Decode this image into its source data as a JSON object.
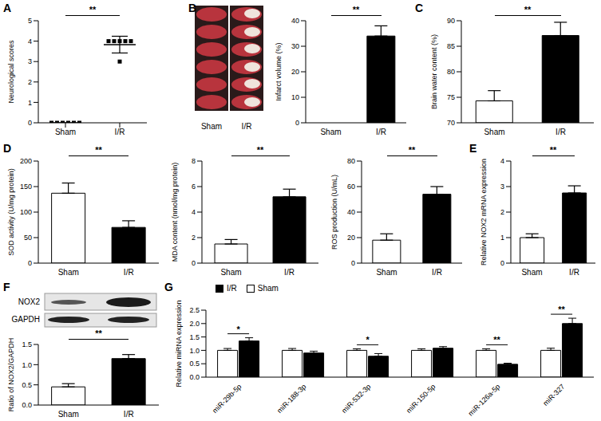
{
  "chart_data": [
    {
      "panel": "A",
      "type": "scatter",
      "y_label": "Neurological scores",
      "categories": [
        "Sham",
        "I/R"
      ],
      "values": [
        [
          0,
          0,
          0,
          0,
          0,
          0
        ],
        [
          4,
          4,
          4,
          4,
          4,
          3
        ]
      ],
      "means": [
        0,
        3.83
      ],
      "errors": [
        0,
        0.41
      ],
      "ylim": [
        0,
        5
      ],
      "yticks": [
        0,
        1,
        2,
        3,
        4,
        5
      ],
      "annotation": "**"
    },
    {
      "panel": "B",
      "type": "bar",
      "image_labels": [
        "Sham",
        "I/R"
      ],
      "y_label": "Infarct volume (%)",
      "categories": [
        "Sham",
        "I/R"
      ],
      "values": [
        0,
        34
      ],
      "errors": [
        0,
        4
      ],
      "colors": [
        "#ffffff",
        "#000000"
      ],
      "ylim": [
        0,
        40
      ],
      "yticks": [
        0,
        10,
        20,
        30,
        40
      ],
      "annotation": "**"
    },
    {
      "panel": "C",
      "type": "bar",
      "y_label": "Brain water content (%)",
      "categories": [
        "Sham",
        "I/R"
      ],
      "values": [
        74.3,
        87.1
      ],
      "errors": [
        2,
        2.6
      ],
      "colors": [
        "#ffffff",
        "#000000"
      ],
      "ylim": [
        70,
        90
      ],
      "yticks": [
        70,
        75,
        80,
        85,
        90
      ],
      "annotation": "**"
    },
    {
      "panel": "D",
      "type": "bar",
      "y_label": "SOD activity (U/mg protein)",
      "categories": [
        "Sham",
        "I/R"
      ],
      "values": [
        137,
        70
      ],
      "errors": [
        20,
        13
      ],
      "colors": [
        "#ffffff",
        "#000000"
      ],
      "ylim": [
        0,
        200
      ],
      "yticks": [
        0,
        50,
        100,
        150,
        200
      ],
      "annotation": "**"
    },
    {
      "type": "bar",
      "y_label": "MDA content (nmol/mg protein)",
      "categories": [
        "Sham",
        "I/R"
      ],
      "values": [
        1.5,
        5.2
      ],
      "errors": [
        0.35,
        0.6
      ],
      "colors": [
        "#ffffff",
        "#000000"
      ],
      "ylim": [
        0,
        8
      ],
      "yticks": [
        0,
        2,
        4,
        6,
        8
      ],
      "annotation": "**"
    },
    {
      "type": "bar",
      "y_label": "ROS production (U/mL)",
      "categories": [
        "Sham",
        "I/R"
      ],
      "values": [
        18,
        54
      ],
      "errors": [
        5,
        6
      ],
      "colors": [
        "#ffffff",
        "#000000"
      ],
      "ylim": [
        0,
        80
      ],
      "yticks": [
        0,
        20,
        40,
        60,
        80
      ],
      "annotation": "**"
    },
    {
      "panel": "E",
      "type": "bar",
      "y_label": "Relative NOX2 mRNA expression",
      "categories": [
        "Sham",
        "I/R"
      ],
      "values": [
        1,
        2.75
      ],
      "errors": [
        0.15,
        0.28
      ],
      "colors": [
        "#ffffff",
        "#000000"
      ],
      "ylim": [
        0,
        4
      ],
      "yticks": [
        0,
        1,
        2,
        3,
        4
      ],
      "annotation": "**"
    },
    {
      "panel": "F",
      "type": "bar",
      "blot_labels": [
        "NOX2",
        "GAPDH"
      ],
      "y_label": "Ratio of NOX2/GAPDH",
      "categories": [
        "Sham",
        "I/R"
      ],
      "values": [
        0.45,
        1.15
      ],
      "errors": [
        0.08,
        0.1
      ],
      "colors": [
        "#ffffff",
        "#000000"
      ],
      "ylim": [
        0,
        1.5
      ],
      "yticks": [
        {
          "value": 0,
          "label": "0.0"
        },
        0.5,
        {
          "value": 1,
          "label": "1.0"
        },
        1.5
      ],
      "annotation": "**"
    },
    {
      "panel": "G",
      "type": "bar",
      "y_label": "Relative miRNA expression",
      "categories": [
        "miR-29b-5p",
        "miR-188-3p",
        "miR-532-3p",
        "miR-150-5p",
        "miR-126a-5p",
        "miR-327"
      ],
      "series": [
        {
          "name": "Sham",
          "color": "#ffffff",
          "values": [
            1,
            1,
            1,
            1,
            1,
            1
          ],
          "errors": [
            0.07,
            0.07,
            0.06,
            0.06,
            0.06,
            0.08
          ]
        },
        {
          "name": "I/R",
          "color": "#000000",
          "values": [
            1.35,
            0.9,
            0.78,
            1.08,
            0.48,
            2.0
          ],
          "errors": [
            0.12,
            0.07,
            0.1,
            0.06,
            0.04,
            0.2
          ]
        }
      ],
      "ylim": [
        0,
        2.5
      ],
      "yticks": [
        {
          "value": 0,
          "label": "0.0"
        },
        0.5,
        {
          "value": 1,
          "label": "1.0"
        },
        1.5,
        {
          "value": 2,
          "label": "2.0"
        },
        2.5
      ],
      "legend": "upper left",
      "annotations": [
        "*",
        null,
        "*",
        null,
        "**",
        "**"
      ]
    }
  ]
}
